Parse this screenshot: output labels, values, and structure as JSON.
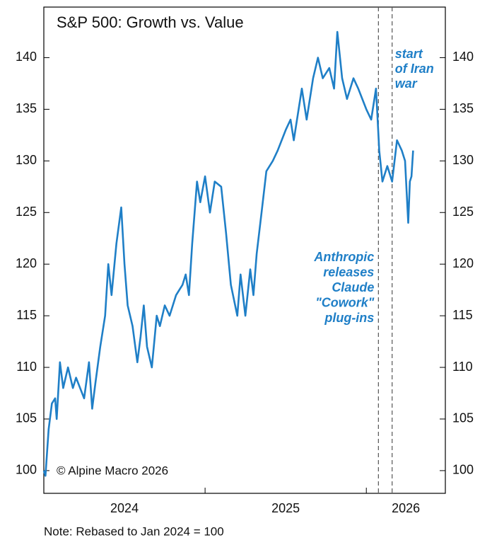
{
  "chart_data": {
    "type": "line",
    "title": "S&P 500: Growth vs. Value",
    "source": "© Alpine Macro 2026",
    "note": "Note: Rebased to Jan 2024 = 100",
    "annotations": [
      {
        "x": 2026.16,
        "lines": [
          "start",
          "of Iran",
          "war"
        ]
      },
      {
        "x": 2026.075,
        "lines": [
          "Anthropic",
          "releases",
          "Claude",
          "\"Cowork\"",
          "plug-ins"
        ]
      }
    ],
    "x": [
      2024.0,
      2024.01,
      2024.03,
      2024.05,
      2024.07,
      2024.08,
      2024.1,
      2024.12,
      2024.15,
      2024.18,
      2024.2,
      2024.25,
      2024.28,
      2024.3,
      2024.32,
      2024.35,
      2024.38,
      2024.4,
      2024.42,
      2024.45,
      2024.48,
      2024.5,
      2024.52,
      2024.55,
      2024.58,
      2024.6,
      2024.62,
      2024.64,
      2024.67,
      2024.7,
      2024.72,
      2024.75,
      2024.78,
      2024.82,
      2024.86,
      2024.88,
      2024.9,
      2024.92,
      2024.95,
      2024.97,
      2025.0,
      2025.03,
      2025.06,
      2025.1,
      2025.13,
      2025.16,
      2025.2,
      2025.22,
      2025.25,
      2025.28,
      2025.3,
      2025.32,
      2025.35,
      2025.38,
      2025.42,
      2025.45,
      2025.5,
      2025.53,
      2025.55,
      2025.6,
      2025.63,
      2025.67,
      2025.7,
      2025.73,
      2025.77,
      2025.8,
      2025.82,
      2025.85,
      2025.88,
      2025.92,
      2025.95,
      2026.0,
      2026.03,
      2026.06,
      2026.08,
      2026.1,
      2026.13,
      2026.16,
      2026.19,
      2026.22,
      2026.24,
      2026.26,
      2026.27,
      2026.28,
      2026.29
    ],
    "series": [
      {
        "name": "Growth vs. Value",
        "color": "#1f7fc7",
        "values": [
          100,
          99.5,
          104,
          106.5,
          107,
          105,
          110.5,
          108,
          110,
          108,
          109,
          107,
          110.5,
          106,
          108.5,
          112,
          115,
          120,
          117,
          122,
          125.5,
          120,
          116,
          114,
          110.5,
          113,
          116,
          112,
          110,
          115,
          114,
          116,
          115,
          117,
          118,
          119,
          117,
          122,
          128,
          126,
          128.5,
          125,
          128,
          127.5,
          123,
          118,
          115,
          119,
          115,
          119.5,
          117,
          121,
          125,
          129,
          130,
          131,
          133,
          134,
          132,
          137,
          134,
          138,
          140,
          138,
          139,
          137,
          142.5,
          138,
          136,
          138,
          137,
          135,
          134,
          137,
          131,
          128,
          129.5,
          128,
          132,
          131,
          130,
          124,
          128,
          128.5,
          131
        ]
      }
    ],
    "xlim": [
      2024,
      2026.49
    ],
    "xticks": [
      2024,
      2025,
      2026
    ],
    "ylim": [
      97.8,
      144.9
    ],
    "yticks": [
      100,
      105,
      110,
      115,
      120,
      125,
      130,
      135,
      140
    ]
  }
}
